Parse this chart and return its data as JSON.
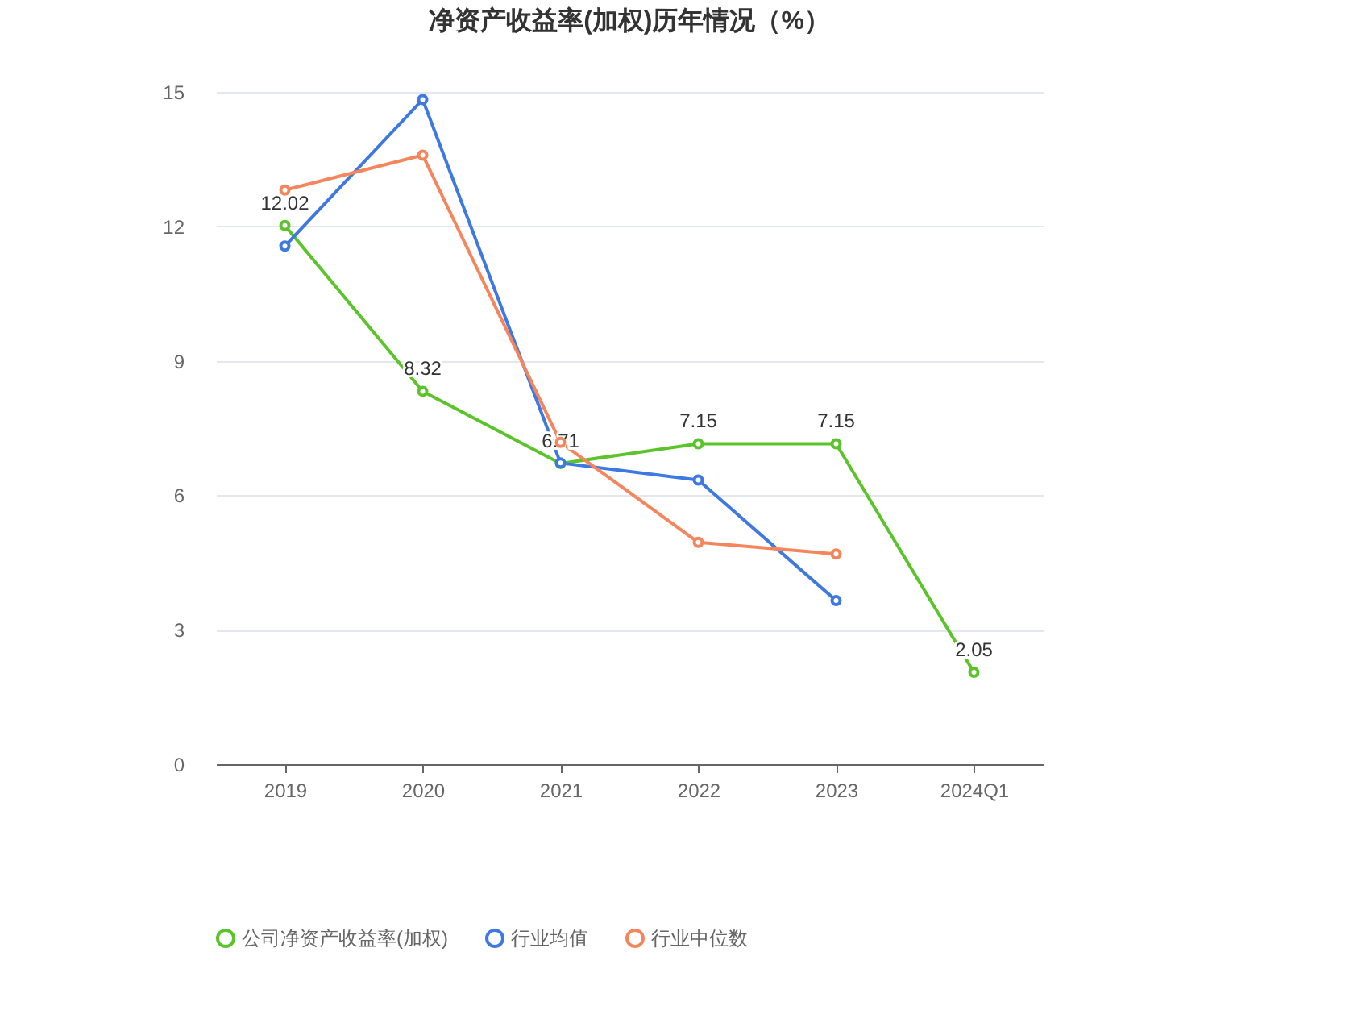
{
  "chart_data": {
    "type": "line",
    "title": "净资产收益率(加权)历年情况（%）",
    "categories": [
      "2019",
      "2020",
      "2021",
      "2022",
      "2023",
      "2024Q1"
    ],
    "ylim": [
      0,
      15
    ],
    "yticks": [
      0,
      3,
      6,
      9,
      12,
      15
    ],
    "grid": "y",
    "legend": "bottom",
    "marker": "circle",
    "line_style": "solid",
    "series": [
      {
        "name": "公司净资产收益率(加权)",
        "color": "#5bc42a",
        "values": [
          12.02,
          8.32,
          6.71,
          7.15,
          7.15,
          2.05
        ],
        "value_labels": [
          "12.02",
          "8.32",
          "6.71",
          "7.15",
          "7.15",
          "2.05"
        ]
      },
      {
        "name": "行业均值",
        "color": "#3d78e3",
        "values": [
          11.56,
          14.83,
          6.72,
          6.34,
          3.65,
          null
        ]
      },
      {
        "name": "行业中位数",
        "color": "#f5855c",
        "values": [
          12.81,
          13.59,
          7.18,
          4.95,
          4.69,
          null
        ]
      }
    ]
  }
}
